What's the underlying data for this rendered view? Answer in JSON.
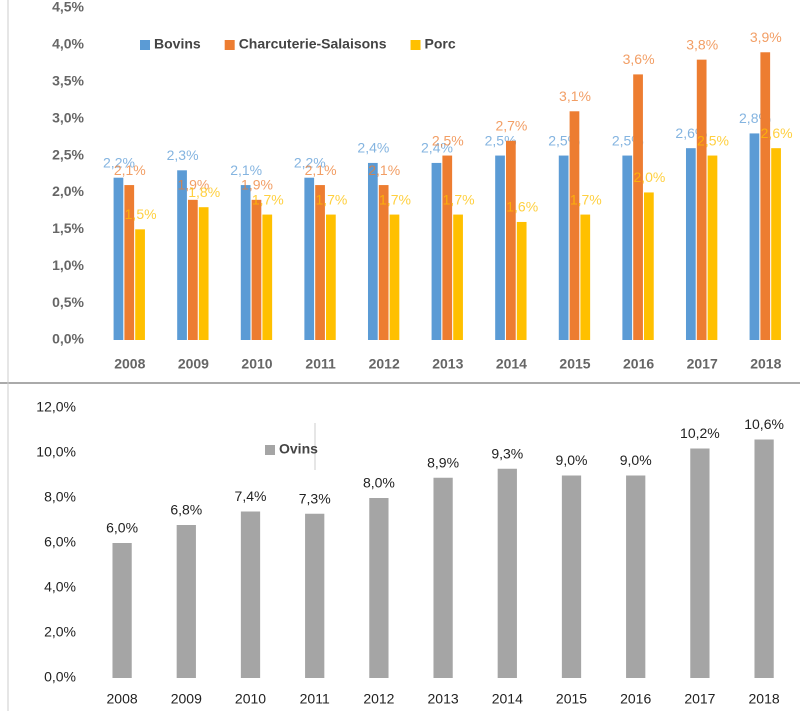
{
  "chart_data": [
    {
      "type": "bar",
      "categories": [
        "2008",
        "2009",
        "2010",
        "2011",
        "2012",
        "2013",
        "2014",
        "2015",
        "2016",
        "2017",
        "2018"
      ],
      "series": [
        {
          "name": "Bovins",
          "color": "#5b9bd5",
          "values": [
            2.2,
            2.3,
            2.1,
            2.2,
            2.4,
            2.4,
            2.5,
            2.5,
            2.5,
            2.6,
            2.8
          ],
          "value_labels": [
            "2,2%",
            "2,3%",
            "2,1%",
            "2,2%",
            "2,4%",
            "2,4%",
            "2,5%",
            "2,5%",
            "2,5%",
            "2,6%",
            "2,8%"
          ]
        },
        {
          "name": "Charcuterie-Salaisons",
          "color": "#ed7d31",
          "values": [
            2.1,
            1.9,
            1.9,
            2.1,
            2.1,
            2.5,
            2.7,
            3.1,
            3.6,
            3.8,
            3.9
          ],
          "value_labels": [
            "2,1%",
            "1,9%",
            "1,9%",
            "2,1%",
            "2,1%",
            "2,5%",
            "2,7%",
            "3,1%",
            "3,6%",
            "3,8%",
            "3,9%"
          ]
        },
        {
          "name": "Porc",
          "color": "#ffc000",
          "values": [
            1.5,
            1.8,
            1.7,
            1.7,
            1.7,
            1.7,
            1.6,
            1.7,
            2.0,
            2.5,
            2.6
          ],
          "value_labels": [
            "1,5%",
            "1,8%",
            "1,7%",
            "1,7%",
            "1,7%",
            "1,7%",
            "1,6%",
            "1,7%",
            "2,0%",
            "2,5%",
            "2,6%"
          ]
        }
      ],
      "ylim": [
        0,
        4.5
      ],
      "yticks": [
        {
          "value": 0,
          "label": "0,0%"
        },
        {
          "value": 0.5,
          "label": "0,5%"
        },
        {
          "value": 1,
          "label": "1,0%"
        },
        {
          "value": 1.5,
          "label": "1,5%"
        },
        {
          "value": 2,
          "label": "2,0%"
        },
        {
          "value": 2.5,
          "label": "2,5%"
        },
        {
          "value": 3,
          "label": "3,0%"
        },
        {
          "value": 3.5,
          "label": "3,5%"
        },
        {
          "value": 4,
          "label": "4,0%"
        },
        {
          "value": 4.5,
          "label": "4,5%"
        }
      ]
    },
    {
      "type": "bar",
      "categories": [
        "2008",
        "2009",
        "2010",
        "2011",
        "2012",
        "2013",
        "2014",
        "2015",
        "2016",
        "2017",
        "2018"
      ],
      "series": [
        {
          "name": "Ovins",
          "color": "#a5a5a5",
          "values": [
            6.0,
            6.8,
            7.4,
            7.3,
            8.0,
            8.9,
            9.3,
            9.0,
            9.0,
            10.2,
            10.6
          ],
          "value_labels": [
            "6,0%",
            "6,8%",
            "7,4%",
            "7,3%",
            "8,0%",
            "8,9%",
            "9,3%",
            "9,0%",
            "9,0%",
            "10,2%",
            "10,6%"
          ]
        }
      ],
      "ylim": [
        0,
        12
      ],
      "yticks": [
        {
          "value": 0,
          "label": "0,0%"
        },
        {
          "value": 2,
          "label": "2,0%"
        },
        {
          "value": 4,
          "label": "4,0%"
        },
        {
          "value": 6,
          "label": "6,0%"
        },
        {
          "value": 8,
          "label": "8,0%"
        },
        {
          "value": 10,
          "label": "10,0%"
        },
        {
          "value": 12,
          "label": "12,0%"
        }
      ]
    }
  ]
}
